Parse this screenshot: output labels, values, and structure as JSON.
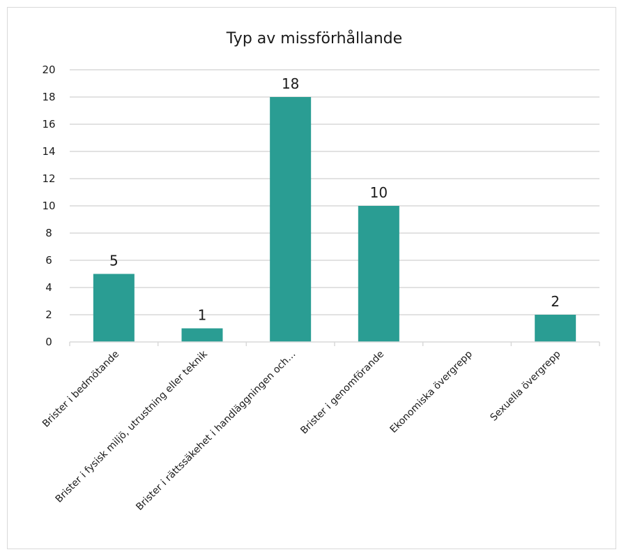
{
  "chart_data": {
    "type": "bar",
    "title": "Typ av missförhållande",
    "xlabel": "",
    "ylabel": "",
    "categories": [
      "Brister i bedmötande",
      "Brister i fysisk miljö, utrustning eller teknik",
      "Brister i rättssäkehet i handläggningen och…",
      "Brister i genomförande",
      "Ekonomiska övergrepp",
      "Sexuella övergrepp"
    ],
    "values": [
      5,
      1,
      18,
      10,
      0,
      2
    ],
    "data_labels": [
      "5",
      "1",
      "18",
      "10",
      "",
      "2"
    ],
    "ylim": [
      0,
      20
    ],
    "yticks": [
      0,
      2,
      4,
      6,
      8,
      10,
      12,
      14,
      16,
      18,
      20
    ],
    "grid": true,
    "legend": "none",
    "bar_color": "#2a9d93",
    "grid_color": "#d9d9d9"
  }
}
